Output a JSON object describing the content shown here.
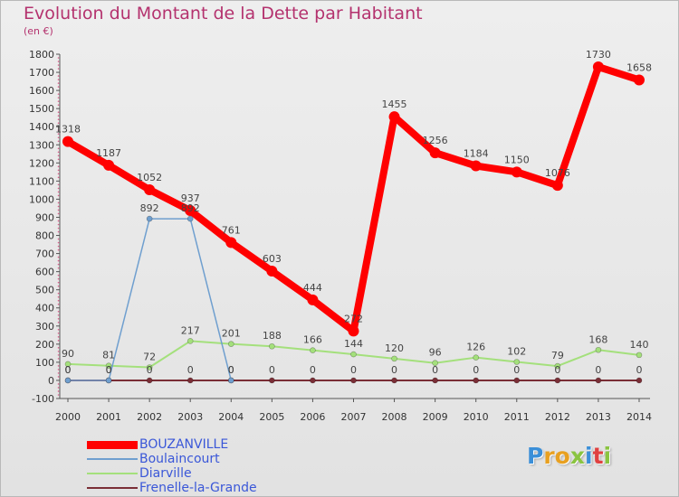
{
  "title": "Evolution du Montant de la Dette par Habitant",
  "unit": "(en €)",
  "logo": {
    "text": "Proxiti",
    "letters": [
      {
        "ch": "P",
        "color": "#3b8fd8"
      },
      {
        "ch": "r",
        "color": "#e8a020"
      },
      {
        "ch": "o",
        "color": "#e8a020"
      },
      {
        "ch": "x",
        "color": "#8ac440"
      },
      {
        "ch": "i",
        "color": "#3b8fd8"
      },
      {
        "ch": "t",
        "color": "#e04040"
      },
      {
        "ch": "i",
        "color": "#8ac440"
      }
    ]
  },
  "chart_data": {
    "type": "line",
    "title": "Evolution du Montant de la Dette par Habitant",
    "subtitle": "(en €)",
    "xlabel": "",
    "ylabel": "",
    "categories": [
      "2000",
      "2001",
      "2002",
      "2003",
      "2004",
      "2005",
      "2006",
      "2007",
      "2008",
      "2009",
      "2010",
      "2011",
      "2012",
      "2013",
      "2014"
    ],
    "ylim": [
      -100,
      1800
    ],
    "yticks": [
      -100,
      0,
      100,
      200,
      300,
      400,
      500,
      600,
      700,
      800,
      900,
      1000,
      1100,
      1200,
      1300,
      1400,
      1500,
      1600,
      1700,
      1800
    ],
    "grid": false,
    "legend_position": "bottom-left",
    "series": [
      {
        "name": "BOUZANVILLE",
        "color": "#ff0000",
        "values": [
          1318,
          1187,
          1052,
          937,
          761,
          603,
          444,
          272,
          1455,
          1256,
          1184,
          1150,
          1076,
          1730,
          1658
        ],
        "labels": [
          "1318",
          "1187",
          "1052",
          "937",
          "761",
          "603",
          "444",
          "272",
          "1455",
          "1256",
          "1184",
          "1150",
          "1076",
          "1730",
          "1658"
        ],
        "label_color": "#444444"
      },
      {
        "name": "Boulaincourt",
        "color": "#6f9fcf",
        "values": [
          0,
          0,
          892,
          892,
          0,
          null,
          null,
          null,
          null,
          null,
          null,
          null,
          null,
          null,
          null
        ],
        "labels": [
          "0",
          "0",
          "892",
          "892",
          "0",
          null,
          null,
          null,
          null,
          null,
          null,
          null,
          null,
          null,
          null
        ],
        "label_color": "#444444"
      },
      {
        "name": "Diarville",
        "color": "#a4e07c",
        "values": [
          90,
          81,
          72,
          217,
          201,
          188,
          166,
          144,
          120,
          96,
          126,
          102,
          79,
          168,
          140
        ],
        "labels": [
          "90",
          "81",
          "72",
          "217",
          "201",
          "188",
          "166",
          "144",
          "120",
          "96",
          "126",
          "102",
          "79",
          "168",
          "140"
        ],
        "label_color": "#444444"
      },
      {
        "name": "Frenelle-la-Grande",
        "color": "#7a2e36",
        "values": [
          0,
          0,
          0,
          0,
          0,
          0,
          0,
          0,
          0,
          0,
          0,
          0,
          0,
          0,
          0
        ],
        "labels": [
          "0",
          "0",
          "0",
          "0",
          "0",
          "0",
          "0",
          "0",
          "0",
          "0",
          "0",
          "0",
          "0",
          "0",
          "0"
        ],
        "label_color": "#444444"
      }
    ]
  }
}
